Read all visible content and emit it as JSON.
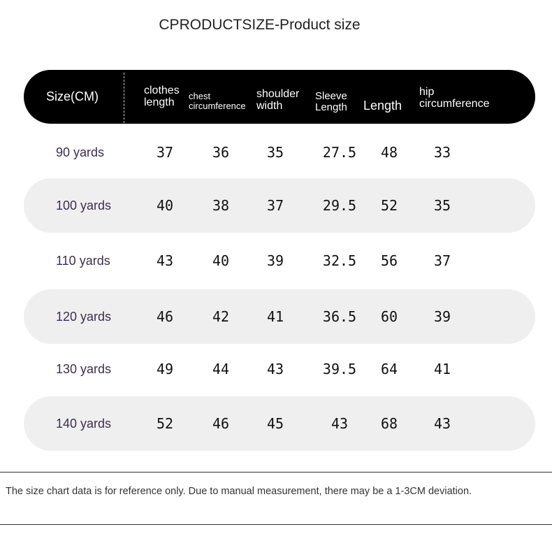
{
  "title": "CPRODUCTSIZE-Product size",
  "headers": [
    {
      "l1": "Size(CM)",
      "l2": ""
    },
    {
      "l1": "clothes",
      "l2": "length"
    },
    {
      "l1": "chest",
      "l2": "circumference"
    },
    {
      "l1": "shoulder",
      "l2": "width"
    },
    {
      "l1": "Sleeve",
      "l2": "Length"
    },
    {
      "l1": "Length",
      "l2": ""
    },
    {
      "l1": "hip",
      "l2": "circumference"
    }
  ],
  "rows": [
    {
      "size": "90 yards",
      "values": [
        "37",
        "36",
        "35",
        "27.5",
        "48",
        "33"
      ]
    },
    {
      "size": "100 yards",
      "values": [
        "40",
        "38",
        "37",
        "29.5",
        "52",
        "35"
      ]
    },
    {
      "size": "110 yards",
      "values": [
        "43",
        "40",
        "39",
        "32.5",
        "56",
        "37"
      ]
    },
    {
      "size": "120 yards",
      "values": [
        "46",
        "42",
        "41",
        "36.5",
        "60",
        "39"
      ]
    },
    {
      "size": "130 yards",
      "values": [
        "49",
        "44",
        "43",
        "39.5",
        "64",
        "41"
      ]
    },
    {
      "size": "140 yards",
      "values": [
        "52",
        "46",
        "45",
        "43",
        "68",
        "43"
      ]
    }
  ],
  "footnote": "The size chart data is for reference only. Due to manual measurement, there may be a 1-3CM deviation.",
  "colors": {
    "header_bg": "#000000",
    "stripe": "#efefef",
    "size_text": "#3b2f4e"
  }
}
